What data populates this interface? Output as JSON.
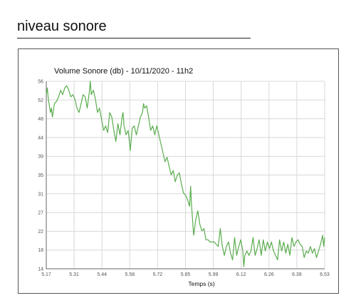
{
  "page": {
    "heading": "niveau sonore"
  },
  "chart_data": {
    "type": "line",
    "title": "Volume Sonore (db)  - 10/11/2020 - 11h2",
    "xlabel": "Temps (s)",
    "ylabel": "",
    "xlim": [
      5.17,
      6.53
    ],
    "ylim": [
      14,
      56
    ],
    "x_ticks": [
      "5.17",
      "5.31",
      "5.44",
      "5.58",
      "5.72",
      "5.85",
      "5.99",
      "6.12",
      "6.26",
      "6.39",
      "6.53"
    ],
    "y_ticks": [
      "14",
      "18",
      "22",
      "27",
      "31",
      "35",
      "39",
      "44",
      "48",
      "52",
      "56"
    ],
    "grid": true,
    "colors": {
      "line": "#5aac4e",
      "grid": "#d8d8d8",
      "axis": "#666666"
    },
    "series": [
      {
        "values": [
          [
            5.17,
            53
          ],
          [
            5.175,
            54.5
          ],
          [
            5.18,
            52
          ],
          [
            5.19,
            49
          ],
          [
            5.195,
            50
          ],
          [
            5.2,
            48
          ],
          [
            5.21,
            51
          ],
          [
            5.22,
            51.5
          ],
          [
            5.23,
            52.5
          ],
          [
            5.24,
            54
          ],
          [
            5.25,
            53
          ],
          [
            5.26,
            54.5
          ],
          [
            5.27,
            55
          ],
          [
            5.28,
            54
          ],
          [
            5.29,
            52.5
          ],
          [
            5.3,
            53
          ],
          [
            5.31,
            52
          ],
          [
            5.32,
            50
          ],
          [
            5.33,
            49
          ],
          [
            5.34,
            51
          ],
          [
            5.35,
            53
          ],
          [
            5.36,
            52.5
          ],
          [
            5.37,
            50
          ],
          [
            5.38,
            53.5
          ],
          [
            5.385,
            56
          ],
          [
            5.39,
            53
          ],
          [
            5.4,
            54
          ],
          [
            5.41,
            52
          ],
          [
            5.42,
            49
          ],
          [
            5.43,
            50
          ],
          [
            5.44,
            47.5
          ],
          [
            5.45,
            45
          ],
          [
            5.46,
            46
          ],
          [
            5.47,
            44.5
          ],
          [
            5.48,
            49
          ],
          [
            5.49,
            48
          ],
          [
            5.5,
            45
          ],
          [
            5.51,
            42.5
          ],
          [
            5.52,
            46.5
          ],
          [
            5.53,
            44
          ],
          [
            5.54,
            48
          ],
          [
            5.545,
            49
          ],
          [
            5.55,
            46
          ],
          [
            5.56,
            44
          ],
          [
            5.57,
            45
          ],
          [
            5.575,
            43
          ],
          [
            5.58,
            40.5
          ],
          [
            5.59,
            45.5
          ],
          [
            5.6,
            46
          ],
          [
            5.61,
            44
          ],
          [
            5.62,
            46
          ],
          [
            5.63,
            48
          ],
          [
            5.64,
            49
          ],
          [
            5.645,
            51
          ],
          [
            5.65,
            50
          ],
          [
            5.66,
            50.5
          ],
          [
            5.67,
            48
          ],
          [
            5.68,
            45
          ],
          [
            5.69,
            46
          ],
          [
            5.7,
            44
          ],
          [
            5.71,
            46
          ],
          [
            5.72,
            44
          ],
          [
            5.73,
            42
          ],
          [
            5.74,
            40
          ],
          [
            5.75,
            38
          ],
          [
            5.76,
            39
          ],
          [
            5.77,
            37
          ],
          [
            5.78,
            35
          ],
          [
            5.79,
            36
          ],
          [
            5.8,
            33.5
          ],
          [
            5.81,
            35
          ],
          [
            5.82,
            35.5
          ],
          [
            5.83,
            33
          ],
          [
            5.84,
            31
          ],
          [
            5.85,
            30.5
          ],
          [
            5.86,
            29.5
          ],
          [
            5.87,
            28
          ],
          [
            5.875,
            32.5
          ],
          [
            5.88,
            28
          ],
          [
            5.89,
            21.5
          ],
          [
            5.9,
            25
          ],
          [
            5.91,
            27
          ],
          [
            5.92,
            24
          ],
          [
            5.93,
            22.5
          ],
          [
            5.94,
            23
          ],
          [
            5.95,
            20.5
          ],
          [
            5.96,
            20.5
          ],
          [
            5.97,
            20
          ],
          [
            5.98,
            20
          ],
          [
            5.99,
            20
          ],
          [
            6.0,
            19.5
          ],
          [
            6.01,
            19
          ],
          [
            6.02,
            23
          ],
          [
            6.03,
            19
          ],
          [
            6.04,
            17
          ],
          [
            6.05,
            19
          ],
          [
            6.06,
            20
          ],
          [
            6.07,
            17.5
          ],
          [
            6.08,
            16
          ],
          [
            6.09,
            21
          ],
          [
            6.1,
            17
          ],
          [
            6.11,
            19
          ],
          [
            6.12,
            20.5
          ],
          [
            6.13,
            18
          ],
          [
            6.135,
            14.5
          ],
          [
            6.14,
            17
          ],
          [
            6.15,
            18
          ],
          [
            6.16,
            17
          ],
          [
            6.17,
            18
          ],
          [
            6.18,
            21
          ],
          [
            6.19,
            17
          ],
          [
            6.2,
            18.5
          ],
          [
            6.21,
            20.5
          ],
          [
            6.22,
            17
          ],
          [
            6.23,
            20.5
          ],
          [
            6.24,
            18
          ],
          [
            6.25,
            20
          ],
          [
            6.26,
            18.5
          ],
          [
            6.27,
            20
          ],
          [
            6.28,
            18
          ],
          [
            6.29,
            17
          ],
          [
            6.3,
            16
          ],
          [
            6.31,
            20.5
          ],
          [
            6.32,
            18
          ],
          [
            6.33,
            20
          ],
          [
            6.34,
            17.5
          ],
          [
            6.35,
            19.5
          ],
          [
            6.36,
            17
          ],
          [
            6.37,
            21
          ],
          [
            6.38,
            19
          ],
          [
            6.39,
            20
          ],
          [
            6.4,
            20.5
          ],
          [
            6.41,
            19.5
          ],
          [
            6.42,
            19
          ],
          [
            6.43,
            16.5
          ],
          [
            6.44,
            18
          ],
          [
            6.45,
            17.5
          ],
          [
            6.46,
            19
          ],
          [
            6.47,
            17.5
          ],
          [
            6.48,
            18.5
          ],
          [
            6.49,
            16.5
          ],
          [
            6.5,
            18
          ],
          [
            6.51,
            19.5
          ],
          [
            6.52,
            21.5
          ],
          [
            6.525,
            19
          ],
          [
            6.53,
            21
          ]
        ]
      }
    ]
  }
}
